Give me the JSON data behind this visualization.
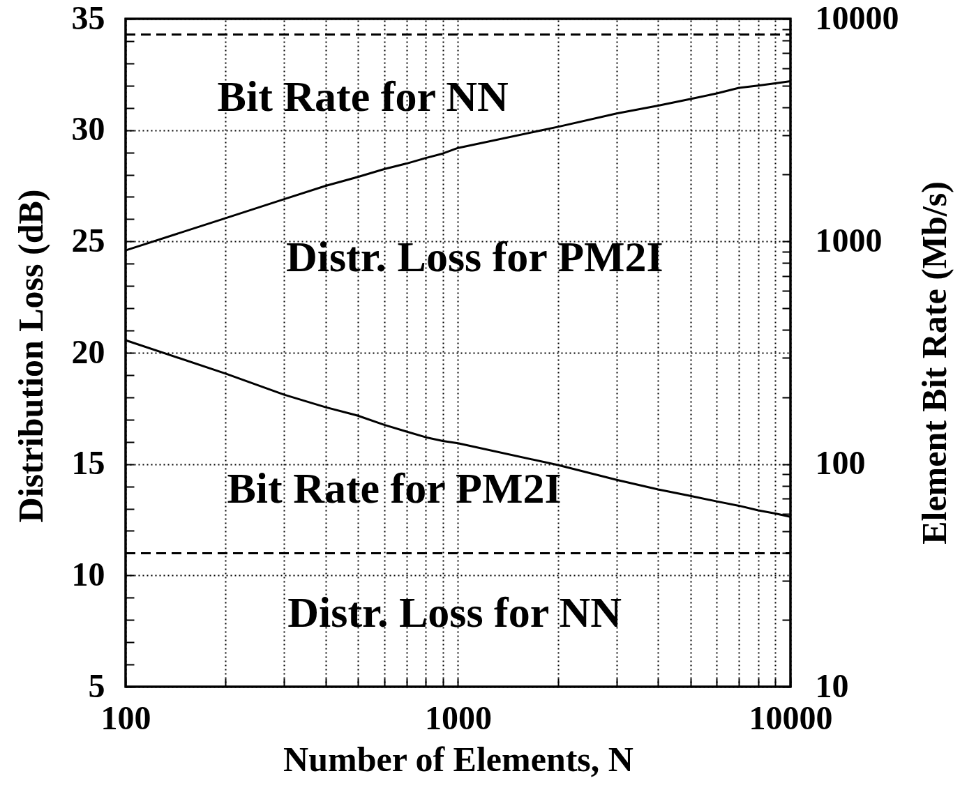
{
  "chart_data": [
    {
      "type": "line",
      "xlabel": "Number of Elements, N",
      "ylabel": "Distribution Loss (dB)",
      "x": [
        100,
        200,
        300,
        400,
        500,
        600,
        700,
        800,
        900,
        1000,
        2000,
        3000,
        4000,
        5000,
        6000,
        7000,
        8000,
        9000,
        10000
      ],
      "series": [
        {
          "name": "Distr. Loss for PM2I",
          "color": "#000000",
          "line_style": "solid",
          "values": [
            24.6,
            26.05,
            26.9,
            27.5,
            27.9,
            28.25,
            28.5,
            28.75,
            28.95,
            29.2,
            30.15,
            30.75,
            31.1,
            31.4,
            31.65,
            31.9,
            32.0,
            32.1,
            32.2
          ]
        },
        {
          "name": "Distr. Loss for NN",
          "color": "#000000",
          "line_style": "dashed",
          "values": [
            11,
            11,
            11,
            11,
            11,
            11,
            11,
            11,
            11,
            11,
            11,
            11,
            11,
            11,
            11,
            11,
            11,
            11,
            11
          ]
        }
      ],
      "xlim": [
        100,
        10000
      ],
      "xticks": [
        100,
        {
          "value": 200,
          "label": null
        },
        {
          "value": 300,
          "label": null
        },
        {
          "value": 400,
          "label": null
        },
        {
          "value": 500,
          "label": null
        },
        {
          "value": 600,
          "label": null
        },
        {
          "value": 700,
          "label": null
        },
        {
          "value": 800,
          "label": null
        },
        {
          "value": 900,
          "label": null
        },
        1000,
        {
          "value": 2000,
          "label": null
        },
        {
          "value": 3000,
          "label": null
        },
        {
          "value": 4000,
          "label": null
        },
        {
          "value": 5000,
          "label": null
        },
        {
          "value": 6000,
          "label": null
        },
        {
          "value": 7000,
          "label": null
        },
        {
          "value": 8000,
          "label": null
        },
        {
          "value": 9000,
          "label": null
        },
        10000
      ],
      "ylim": [
        5,
        35
      ],
      "yticks": [
        5,
        {
          "value": 6,
          "label": null
        },
        {
          "value": 7,
          "label": null
        },
        {
          "value": 8,
          "label": null
        },
        {
          "value": 9,
          "label": null
        },
        10,
        {
          "value": 11,
          "label": null
        },
        {
          "value": 12,
          "label": null
        },
        {
          "value": 13,
          "label": null
        },
        {
          "value": 14,
          "label": null
        },
        15,
        {
          "value": 16,
          "label": null
        },
        {
          "value": 17,
          "label": null
        },
        {
          "value": 18,
          "label": null
        },
        {
          "value": 19,
          "label": null
        },
        20,
        {
          "value": 21,
          "label": null
        },
        {
          "value": 22,
          "label": null
        },
        {
          "value": 23,
          "label": null
        },
        {
          "value": 24,
          "label": null
        },
        25,
        {
          "value": 26,
          "label": null
        },
        {
          "value": 27,
          "label": null
        },
        {
          "value": 28,
          "label": null
        },
        {
          "value": 29,
          "label": null
        },
        30,
        {
          "value": 31,
          "label": null
        },
        {
          "value": 32,
          "label": null
        },
        {
          "value": 33,
          "label": null
        },
        {
          "value": 34,
          "label": null
        },
        35
      ],
      "log": "x",
      "grid": "y"
    },
    {
      "type": "line",
      "ylabel": "Element Bit Rate (Mb/s)",
      "x": [
        100,
        200,
        300,
        400,
        500,
        600,
        700,
        800,
        900,
        1000,
        2000,
        3000,
        4000,
        5000,
        6000,
        7000,
        8000,
        9000,
        10000
      ],
      "series": [
        {
          "name": "Bit Rate for NN",
          "color": "#000000",
          "line_style": "dashed",
          "values": [
            8500,
            8500,
            8500,
            8500,
            8500,
            8500,
            8500,
            8500,
            8500,
            8500,
            8500,
            8500,
            8500,
            8500,
            8500,
            8500,
            8500,
            8500,
            8500
          ]
        },
        {
          "name": "Bit Rate for PM2I",
          "color": "#000000",
          "line_style": "solid",
          "values": [
            360,
            255,
            205,
            180,
            165,
            150,
            140,
            132,
            127,
            124,
            99,
            85,
            77,
            72,
            68,
            65,
            62,
            60,
            58
          ]
        }
      ],
      "xlim": [
        100,
        10000
      ],
      "xticks": [
        100,
        {
          "value": 200,
          "label": null
        },
        {
          "value": 300,
          "label": null
        },
        {
          "value": 400,
          "label": null
        },
        {
          "value": 500,
          "label": null
        },
        {
          "value": 600,
          "label": null
        },
        {
          "value": 700,
          "label": null
        },
        {
          "value": 800,
          "label": null
        },
        {
          "value": 900,
          "label": null
        },
        1000,
        {
          "value": 2000,
          "label": null
        },
        {
          "value": 3000,
          "label": null
        },
        {
          "value": 4000,
          "label": null
        },
        {
          "value": 5000,
          "label": null
        },
        {
          "value": 6000,
          "label": null
        },
        {
          "value": 7000,
          "label": null
        },
        {
          "value": 8000,
          "label": null
        },
        {
          "value": 9000,
          "label": null
        },
        10000
      ],
      "ylim": [
        10,
        10000
      ],
      "yticks": [
        10,
        {
          "value": 20,
          "label": null
        },
        {
          "value": 30,
          "label": null
        },
        {
          "value": 40,
          "label": null
        },
        {
          "value": 50,
          "label": null
        },
        {
          "value": 60,
          "label": null
        },
        {
          "value": 70,
          "label": null
        },
        {
          "value": 80,
          "label": null
        },
        {
          "value": 90,
          "label": null
        },
        100,
        {
          "value": 200,
          "label": null
        },
        {
          "value": 300,
          "label": null
        },
        {
          "value": 400,
          "label": null
        },
        {
          "value": 500,
          "label": null
        },
        {
          "value": 600,
          "label": null
        },
        {
          "value": 700,
          "label": null
        },
        {
          "value": 800,
          "label": null
        },
        {
          "value": 900,
          "label": null
        },
        1000,
        {
          "value": 2000,
          "label": null
        },
        {
          "value": 3000,
          "label": null
        },
        {
          "value": 4000,
          "label": null
        },
        {
          "value": 5000,
          "label": null
        },
        {
          "value": 6000,
          "label": null
        },
        {
          "value": 7000,
          "label": null
        },
        {
          "value": 8000,
          "label": null
        },
        {
          "value": 9000,
          "label": null
        },
        10000
      ],
      "log": "xy",
      "grid": "x",
      "tick_labels": "y"
    }
  ]
}
